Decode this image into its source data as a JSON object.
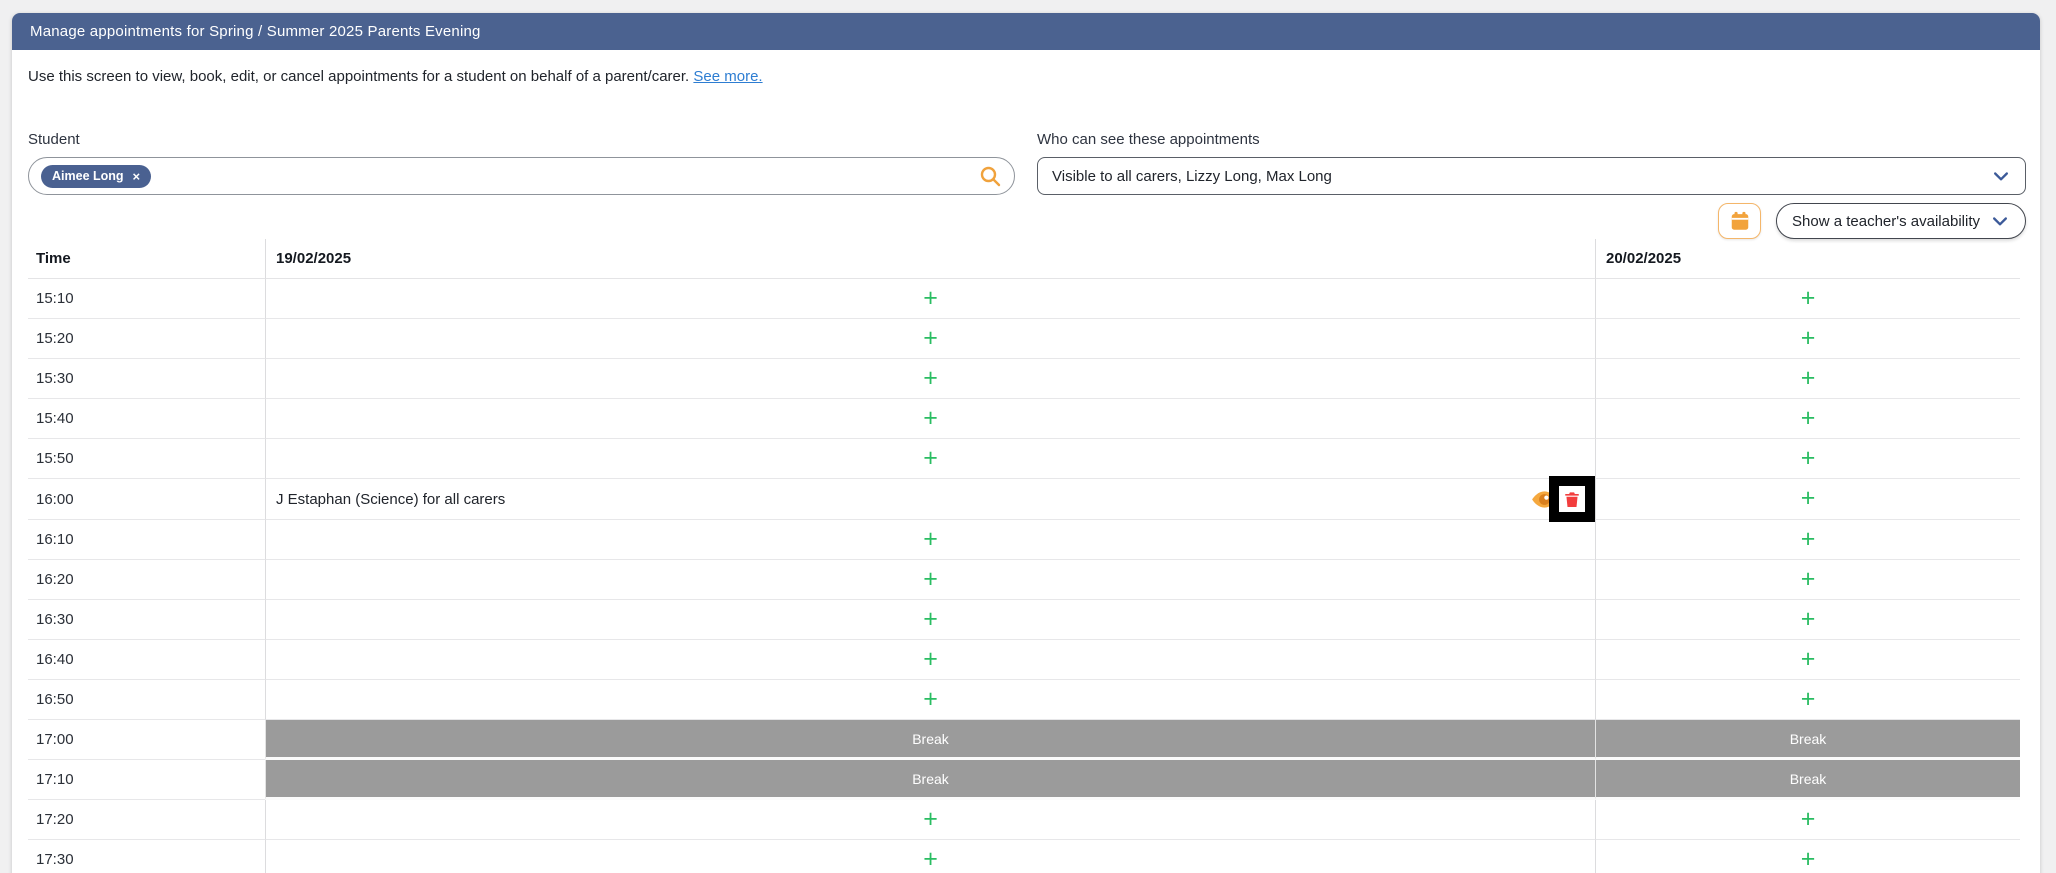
{
  "header": {
    "title": "Manage appointments for Spring / Summer 2025 Parents Evening"
  },
  "intro": {
    "text": "Use this screen to view, book, edit, or cancel appointments for a student on behalf of a parent/carer.",
    "link_label": "See more."
  },
  "student": {
    "label": "Student",
    "chip": {
      "name": "Aimee Long",
      "remove_symbol": "×"
    }
  },
  "visibility": {
    "label": "Who can see these appointments",
    "value": "Visible to all carers, Lizzy Long, Max Long"
  },
  "toolbar": {
    "availability_label": "Show a teacher's availability"
  },
  "schedule": {
    "columns": [
      "Time",
      "19/02/2025",
      "20/02/2025"
    ],
    "add_symbol": "+",
    "break_label": "Break",
    "rows": [
      {
        "time": "15:10",
        "day1": {
          "type": "add"
        },
        "day2": {
          "type": "add"
        }
      },
      {
        "time": "15:20",
        "day1": {
          "type": "add"
        },
        "day2": {
          "type": "add"
        }
      },
      {
        "time": "15:30",
        "day1": {
          "type": "add"
        },
        "day2": {
          "type": "add"
        }
      },
      {
        "time": "15:40",
        "day1": {
          "type": "add"
        },
        "day2": {
          "type": "add"
        }
      },
      {
        "time": "15:50",
        "day1": {
          "type": "add"
        },
        "day2": {
          "type": "add"
        }
      },
      {
        "time": "16:00",
        "day1": {
          "type": "appointment",
          "label": "J Estaphan (Science) for all carers",
          "delete_highlighted": true
        },
        "day2": {
          "type": "add"
        }
      },
      {
        "time": "16:10",
        "day1": {
          "type": "add"
        },
        "day2": {
          "type": "add"
        }
      },
      {
        "time": "16:20",
        "day1": {
          "type": "add"
        },
        "day2": {
          "type": "add"
        }
      },
      {
        "time": "16:30",
        "day1": {
          "type": "add"
        },
        "day2": {
          "type": "add"
        }
      },
      {
        "time": "16:40",
        "day1": {
          "type": "add"
        },
        "day2": {
          "type": "add"
        }
      },
      {
        "time": "16:50",
        "day1": {
          "type": "add"
        },
        "day2": {
          "type": "add"
        }
      },
      {
        "time": "17:00",
        "day1": {
          "type": "break"
        },
        "day2": {
          "type": "break"
        }
      },
      {
        "time": "17:10",
        "day1": {
          "type": "break"
        },
        "day2": {
          "type": "break"
        }
      },
      {
        "time": "17:20",
        "day1": {
          "type": "add"
        },
        "day2": {
          "type": "add"
        }
      },
      {
        "time": "17:30",
        "day1": {
          "type": "add"
        },
        "day2": {
          "type": "add"
        }
      }
    ]
  },
  "colors": {
    "header_bg": "#4b6290",
    "chip_blue": "#4a6191",
    "accent_orange": "#f2a33c",
    "accent_green": "#2abd62",
    "link_blue": "#2d7dd2",
    "break_gray": "#9b9b9b",
    "delete_red": "#f23d3d",
    "chevron_blue": "#3c5a99"
  }
}
